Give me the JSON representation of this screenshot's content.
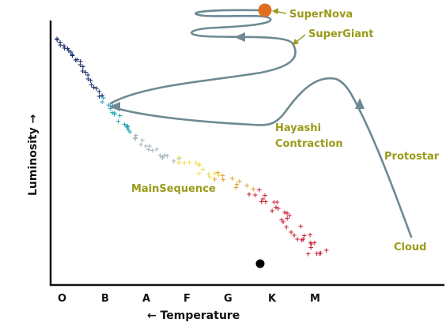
{
  "diagram": {
    "labels": {
      "supernova": "SuperNova",
      "supergiant": "SuperGiant",
      "hayashi_line1": "Hayashi",
      "hayashi_line2": "Contraction",
      "protostar": "Protostar",
      "main_sequence": "MainSequence",
      "cloud": "Cloud"
    },
    "axes": {
      "x_label": "← Temperature",
      "y_label": "Luminosity →",
      "x_ticks": [
        "O",
        "B",
        "A",
        "F",
        "G",
        "K",
        "M"
      ]
    },
    "colors": {
      "label": "#9a9a1a",
      "path": "#6d8a93",
      "supernova": "#e0701f",
      "axis": "#111111",
      "main_sequence": [
        "#1b2f6b",
        "#2ba9b8",
        "#a9b7bd",
        "#f0e25a",
        "#e8a23a",
        "#c8283a"
      ]
    }
  }
}
